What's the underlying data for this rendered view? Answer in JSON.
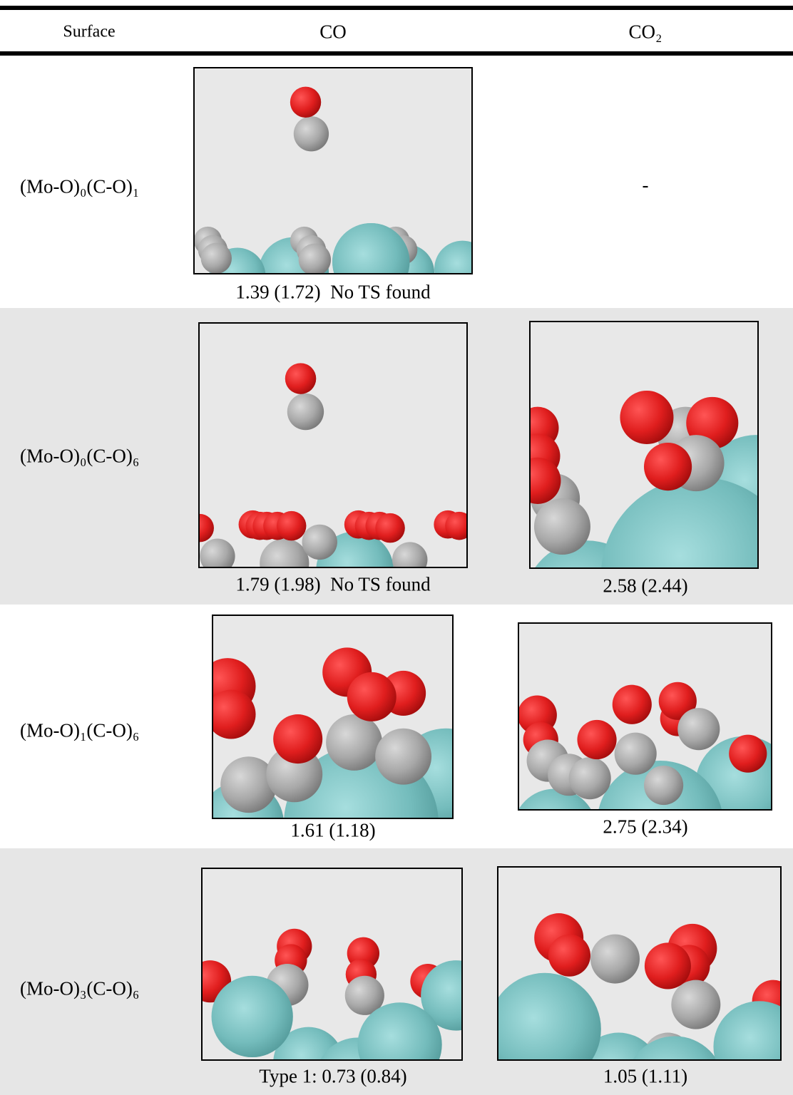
{
  "table": {
    "header": [
      "Surface",
      "CO",
      "CO₂"
    ],
    "rows": [
      {
        "surface": "(Mo-O)₀(C-O)₁",
        "co": "1.39 (1.72)  No TS found",
        "co2": "-"
      },
      {
        "surface": "(Mo-O)₀(C-O)₆",
        "co": "1.79 (1.98)  No TS found",
        "co2": "2.58 (2.44)"
      },
      {
        "surface": "(Mo-O)₁(C-O)₆",
        "co": "1.61 (1.18)",
        "co2": "2.75 (2.34)"
      },
      {
        "surface": "(Mo-O)₃(C-O)₆",
        "co": "Type 1: 0.73 (0.84)",
        "co2": "1.05 (1.11)"
      }
    ]
  }
}
